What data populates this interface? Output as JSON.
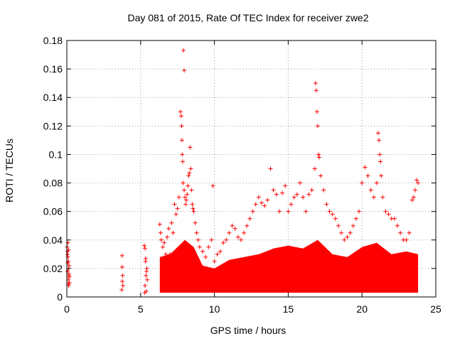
{
  "chart_data": {
    "type": "scatter",
    "title": "Day 081 of 2015, Rate Of TEC Index for receiver zwe2",
    "xlabel": "GPS time / hours",
    "ylabel": "ROTI / TECUs",
    "xlim": [
      0,
      25
    ],
    "ylim": [
      0,
      0.18
    ],
    "xticks": [
      "0",
      "5",
      "10",
      "15",
      "20",
      "25"
    ],
    "yticks": [
      "0",
      "0.02",
      "0.04",
      "0.06",
      "0.08",
      "0.1",
      "0.12",
      "0.14",
      "0.16",
      "0.18"
    ],
    "grid": true,
    "marker": "+",
    "color": "#ff0000",
    "series": [
      {
        "x": [
          0.02,
          0.05,
          0.08,
          0.1,
          0.12,
          0.15,
          0.18,
          0.05,
          0.1,
          0.15,
          0.08,
          0.12,
          0.04,
          0.14,
          0.1,
          0.06,
          0.16,
          0.12,
          3.75,
          3.75,
          3.78,
          3.8,
          3.72,
          3.76,
          5.25,
          5.3,
          5.35,
          5.4,
          5.45,
          5.3,
          5.38,
          5.28,
          5.42,
          5.33,
          5.36,
          6.3,
          6.35,
          6.4,
          6.5,
          6.6,
          6.7,
          6.8,
          6.9,
          7.0,
          7.1,
          7.2,
          7.3,
          7.4,
          7.5,
          7.6,
          7.7,
          7.75,
          7.78,
          7.8,
          7.82,
          7.85,
          7.88,
          7.9,
          7.95,
          7.95,
          8.0,
          8.05,
          8.1,
          8.15,
          8.2,
          8.25,
          8.3,
          8.35,
          8.4,
          8.45,
          8.5,
          8.55,
          8.6,
          8.7,
          8.8,
          8.9,
          9.0,
          9.2,
          9.4,
          9.6,
          9.8,
          9.9,
          10.0,
          10.2,
          10.4,
          10.6,
          10.8,
          11.0,
          11.2,
          11.4,
          11.6,
          11.8,
          12.0,
          12.2,
          12.4,
          12.6,
          12.8,
          13.0,
          13.2,
          13.4,
          13.6,
          13.8,
          14.0,
          14.2,
          14.4,
          14.6,
          14.8,
          15.0,
          15.2,
          15.4,
          15.6,
          15.8,
          16.0,
          16.2,
          16.4,
          16.6,
          16.8,
          16.85,
          16.9,
          16.95,
          17.0,
          17.05,
          17.1,
          17.2,
          17.4,
          17.6,
          17.8,
          18.0,
          18.2,
          18.4,
          18.6,
          18.8,
          19.0,
          19.2,
          19.4,
          19.6,
          19.8,
          20.0,
          20.2,
          20.4,
          20.6,
          20.8,
          21.0,
          21.1,
          21.15,
          21.2,
          21.25,
          21.3,
          21.4,
          21.6,
          21.8,
          22.0,
          22.2,
          22.4,
          22.6,
          22.8,
          23.0,
          23.2,
          23.4,
          23.5,
          23.6,
          23.7,
          23.8
        ],
        "y": [
          0.035,
          0.03,
          0.038,
          0.025,
          0.02,
          0.015,
          0.01,
          0.018,
          0.012,
          0.022,
          0.028,
          0.008,
          0.032,
          0.016,
          0.009,
          0.024,
          0.014,
          0.033,
          0.029,
          0.021,
          0.015,
          0.008,
          0.005,
          0.011,
          0.036,
          0.034,
          0.027,
          0.018,
          0.012,
          0.008,
          0.004,
          0.003,
          0.02,
          0.025,
          0.015,
          0.051,
          0.045,
          0.04,
          0.035,
          0.038,
          0.03,
          0.042,
          0.048,
          0.03,
          0.052,
          0.045,
          0.065,
          0.058,
          0.062,
          0.07,
          0.13,
          0.127,
          0.12,
          0.11,
          0.1,
          0.095,
          0.08,
          0.173,
          0.159,
          0.075,
          0.07,
          0.065,
          0.068,
          0.072,
          0.078,
          0.085,
          0.087,
          0.105,
          0.09,
          0.075,
          0.065,
          0.062,
          0.06,
          0.052,
          0.045,
          0.04,
          0.035,
          0.032,
          0.028,
          0.035,
          0.04,
          0.078,
          0.025,
          0.03,
          0.032,
          0.038,
          0.04,
          0.045,
          0.05,
          0.048,
          0.042,
          0.04,
          0.045,
          0.05,
          0.055,
          0.06,
          0.065,
          0.07,
          0.066,
          0.064,
          0.068,
          0.09,
          0.075,
          0.072,
          0.06,
          0.073,
          0.078,
          0.06,
          0.065,
          0.07,
          0.072,
          0.08,
          0.07,
          0.06,
          0.072,
          0.075,
          0.09,
          0.15,
          0.145,
          0.13,
          0.12,
          0.1,
          0.098,
          0.085,
          0.075,
          0.065,
          0.06,
          0.058,
          0.055,
          0.05,
          0.045,
          0.04,
          0.042,
          0.045,
          0.05,
          0.055,
          0.06,
          0.08,
          0.091,
          0.085,
          0.075,
          0.07,
          0.08,
          0.115,
          0.11,
          0.1,
          0.095,
          0.085,
          0.07,
          0.06,
          0.058,
          0.055,
          0.055,
          0.05,
          0.045,
          0.04,
          0.04,
          0.045,
          0.068,
          0.07,
          0.075,
          0.082,
          0.08
        ]
      }
    ]
  }
}
